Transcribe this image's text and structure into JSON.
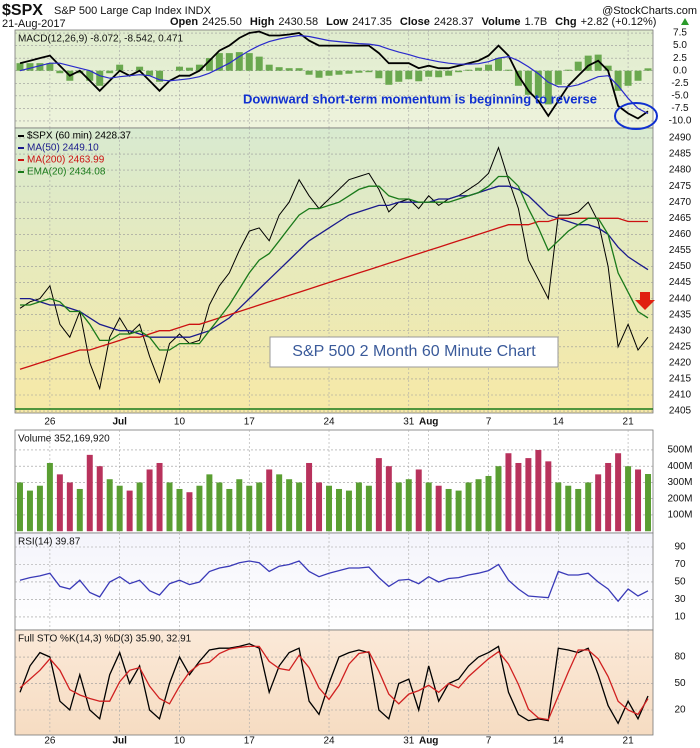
{
  "header": {
    "symbol": "$SPX",
    "name": "S&P 500 Large Cap Index INDX",
    "source": "@StockCharts.com",
    "date": "21-Aug-2017",
    "quote": [
      {
        "label": "Open",
        "value": "2425.50"
      },
      {
        "label": "High",
        "value": "2430.58"
      },
      {
        "label": "Low",
        "value": "2417.35"
      },
      {
        "label": "Close",
        "value": "2428.37"
      },
      {
        "label": "Volume",
        "value": "1.7B"
      },
      {
        "label": "Chg",
        "value": "+2.82 (+0.12%)"
      }
    ]
  },
  "chart_data": [
    {
      "type": "macd",
      "title": "MACD(12,26,9) -8.072, -8.542, 0.471",
      "annotation": "Downward short-term momentum is beginning to reverse",
      "ylim": [
        -11.4,
        8.1
      ],
      "yticks": [
        7.5,
        {
          "value": 5,
          "label": "5.0"
        },
        2.5,
        {
          "value": 0,
          "label": "0.0"
        },
        -2.5,
        {
          "value": -5,
          "label": "-5.0"
        },
        -7.5,
        {
          "value": -10,
          "label": "-10.0"
        }
      ],
      "grid": true,
      "series": [
        {
          "color": "#000000",
          "values": [
            1.5,
            2,
            2.5,
            3,
            1,
            -1,
            0,
            -2,
            -4,
            -2,
            0,
            -1,
            0,
            -2,
            -4,
            -2,
            -1,
            -1,
            0,
            2,
            4,
            5,
            6.5,
            7.5,
            7.8,
            7,
            7,
            7.2,
            7.5,
            6,
            5,
            5,
            5,
            5,
            5,
            5,
            3.5,
            1.5,
            1.5,
            1.5,
            0.5,
            1,
            0.5,
            0.5,
            1,
            1.5,
            2,
            3,
            5,
            3,
            -1,
            -4,
            -6,
            -9,
            -6,
            -3,
            -1,
            1,
            2,
            0,
            -7,
            -8.5,
            -9.5,
            -8.072
          ]
        },
        {
          "color": "#2a2acc",
          "values": [
            0,
            0.5,
            1,
            1.5,
            1.5,
            1,
            0.5,
            0,
            -1,
            -1.5,
            -1.2,
            -1,
            -0.8,
            -1,
            -1.8,
            -2,
            -1.8,
            -1.6,
            -1.2,
            -0.5,
            0.5,
            1.5,
            2.8,
            4,
            5,
            5.8,
            6.3,
            6.7,
            7,
            6.8,
            6.4,
            6,
            5.8,
            5.6,
            5.4,
            5.3,
            5,
            4.3,
            3.7,
            3.2,
            2.6,
            2.2,
            1.8,
            1.5,
            1.3,
            1.3,
            1.4,
            1.8,
            2.5,
            2.8,
            2,
            0.8,
            -0.6,
            -2.3,
            -3.2,
            -3.2,
            -2.8,
            -2,
            -1.2,
            -1,
            -3,
            -5.5,
            -7.5,
            -8.542
          ]
        }
      ],
      "histogram": {
        "color": "#6aa84f",
        "values": [
          1.5,
          1.5,
          1.5,
          1.5,
          -0.5,
          -2,
          -0.5,
          -2,
          -3,
          -0.5,
          1.2,
          0,
          0.8,
          -1,
          -2.2,
          0,
          0.8,
          0.6,
          1.2,
          2.5,
          3.5,
          3.5,
          3.7,
          3.5,
          2.8,
          1.2,
          0.7,
          0.5,
          0.5,
          -0.8,
          -1.4,
          -1,
          -0.8,
          -0.6,
          -0.4,
          -0.3,
          -1.5,
          -2.8,
          -2.2,
          -1.7,
          -2.1,
          -1.2,
          -1.3,
          -1,
          -0.3,
          0.2,
          0.6,
          1.2,
          2.5,
          0.2,
          -3,
          -4.8,
          -5.4,
          -6.7,
          -2.8,
          0.2,
          1.8,
          3,
          3.2,
          1,
          -4,
          -3,
          -2,
          0.471
        ]
      }
    },
    {
      "type": "line",
      "annotation": "S&P 500 2 Month 60 Minute Chart",
      "categories": [
        null,
        null,
        null,
        "26",
        null,
        null,
        null,
        null,
        null,
        null,
        "Jul",
        null,
        null,
        null,
        null,
        null,
        "10",
        null,
        null,
        null,
        null,
        null,
        null,
        "17",
        null,
        null,
        null,
        null,
        null,
        null,
        null,
        "24",
        null,
        null,
        null,
        null,
        null,
        null,
        null,
        "31",
        null,
        "Aug",
        null,
        null,
        null,
        null,
        null,
        "7",
        null,
        null,
        null,
        null,
        null,
        null,
        "14",
        null,
        null,
        null,
        null,
        null,
        null,
        "21",
        null,
        null
      ],
      "ylim": [
        2404.4,
        2493.1
      ],
      "yticks": [
        2405,
        2410,
        2415,
        2420,
        2425,
        2430,
        2435,
        2440,
        2445,
        2450,
        2455,
        2460,
        2465,
        2470,
        2475,
        2480,
        2485,
        2490
      ],
      "grid": true,
      "series": [
        {
          "name": "$SPX (60 min) 2428.37",
          "color": "#000000",
          "values": [
            2437,
            2439,
            2440,
            2444,
            2432,
            2428,
            2436,
            2420,
            2412,
            2428,
            2434,
            2429,
            2432,
            2422,
            2414,
            2426,
            2429,
            2426,
            2427,
            2438,
            2444,
            2448,
            2455,
            2461,
            2462,
            2458,
            2466,
            2470,
            2477,
            2472,
            2468,
            2471,
            2474,
            2477,
            2478,
            2479,
            2474,
            2467,
            2470,
            2471,
            2468,
            2472,
            2469,
            2471,
            2472,
            2474,
            2476,
            2479,
            2487,
            2477,
            2468,
            2452,
            2446,
            2440,
            2466,
            2466,
            2467,
            2470,
            2464,
            2450,
            2425,
            2432,
            2424,
            2428
          ]
        },
        {
          "name": "MA(50) 2449.10",
          "color": "#1a1a8c",
          "values": [
            2440,
            2440,
            2439,
            2438,
            2438,
            2437,
            2436,
            2434,
            2432,
            2431,
            2430,
            2430,
            2429,
            2428,
            2428,
            2428,
            2428,
            2428,
            2429,
            2430,
            2432,
            2434,
            2437,
            2440,
            2443,
            2446,
            2449,
            2452,
            2455,
            2458,
            2460,
            2462,
            2464,
            2466,
            2467,
            2468,
            2469,
            2469,
            2470,
            2470,
            2470,
            2470,
            2471,
            2471,
            2472,
            2472,
            2473,
            2474,
            2475,
            2475,
            2474,
            2472,
            2469,
            2466,
            2465,
            2464,
            2463,
            2463,
            2462,
            2460,
            2456,
            2453,
            2451,
            2449
          ]
        },
        {
          "name": "MA(200) 2463.99",
          "color": "#cc1111",
          "values": [
            2418,
            2419,
            2420,
            2421,
            2422,
            2423,
            2424,
            2424,
            2425,
            2426,
            2427,
            2428,
            2428,
            2429,
            2430,
            2430,
            2431,
            2432,
            2432,
            2433,
            2434,
            2435,
            2436,
            2437,
            2438,
            2439,
            2440,
            2441,
            2442,
            2443,
            2444,
            2445,
            2446,
            2447,
            2448,
            2449,
            2450,
            2451,
            2452,
            2453,
            2454,
            2455,
            2456,
            2457,
            2458,
            2459,
            2460,
            2461,
            2462,
            2463,
            2463,
            2463,
            2464,
            2464,
            2465,
            2465,
            2465,
            2465,
            2465,
            2465,
            2465,
            2464,
            2464,
            2464
          ]
        },
        {
          "name": "EMA(20) 2434.08",
          "color": "#1a7a1a",
          "values": [
            2438,
            2438,
            2439,
            2440,
            2439,
            2436,
            2436,
            2432,
            2427,
            2427,
            2429,
            2429,
            2430,
            2428,
            2424,
            2424,
            2426,
            2426,
            2426,
            2430,
            2434,
            2438,
            2443,
            2448,
            2452,
            2454,
            2458,
            2462,
            2466,
            2468,
            2468,
            2469,
            2470,
            2472,
            2474,
            2475,
            2475,
            2472,
            2471,
            2471,
            2470,
            2470,
            2470,
            2470,
            2471,
            2472,
            2473,
            2475,
            2478,
            2478,
            2475,
            2468,
            2462,
            2455,
            2458,
            2461,
            2463,
            2465,
            2465,
            2460,
            2448,
            2442,
            2436,
            2434
          ]
        }
      ]
    },
    {
      "type": "bar",
      "title": "Volume 352,169,920",
      "up_color": "#5a9e32",
      "down_color": "#b8325c",
      "ylim": [
        -11000000,
        623000000
      ],
      "yticks": [
        {
          "value": 100000000,
          "label": "100M"
        },
        {
          "value": 200000000,
          "label": "200M"
        },
        {
          "value": 300000000,
          "label": "300M"
        },
        {
          "value": 400000000,
          "label": "400M"
        },
        {
          "value": 500000000,
          "label": "500M"
        }
      ],
      "grid": true,
      "values": [
        300000000,
        250000000,
        280000000,
        420000000,
        350000000,
        300000000,
        260000000,
        470000000,
        400000000,
        320000000,
        280000000,
        250000000,
        300000000,
        380000000,
        420000000,
        300000000,
        260000000,
        240000000,
        280000000,
        350000000,
        300000000,
        260000000,
        320000000,
        280000000,
        300000000,
        380000000,
        350000000,
        320000000,
        300000000,
        420000000,
        300000000,
        280000000,
        260000000,
        250000000,
        300000000,
        280000000,
        450000000,
        400000000,
        300000000,
        320000000,
        380000000,
        300000000,
        280000000,
        260000000,
        250000000,
        300000000,
        320000000,
        340000000,
        400000000,
        480000000,
        420000000,
        450000000,
        500000000,
        430000000,
        300000000,
        280000000,
        260000000,
        300000000,
        350000000,
        420000000,
        480000000,
        400000000,
        380000000,
        352169920
      ]
    },
    {
      "type": "line",
      "title": "RSI(14) 39.87",
      "ylim": [
        -4.9,
        106
      ],
      "yticks": [
        10,
        30,
        50,
        70,
        90
      ],
      "grid": true,
      "series": [
        {
          "color": "#3a3ab8",
          "values": [
            52,
            55,
            57,
            60,
            45,
            42,
            52,
            38,
            33,
            50,
            56,
            48,
            52,
            40,
            35,
            48,
            52,
            47,
            50,
            62,
            66,
            68,
            72,
            74,
            72,
            62,
            68,
            70,
            74,
            62,
            56,
            60,
            63,
            66,
            66,
            67,
            55,
            45,
            52,
            53,
            48,
            56,
            50,
            54,
            55,
            58,
            60,
            63,
            70,
            52,
            42,
            34,
            33,
            32,
            62,
            58,
            58,
            60,
            50,
            42,
            28,
            42,
            34,
            39.87
          ]
        }
      ]
    },
    {
      "type": "line",
      "title": "Full STO %K(14,3) %D(3) 35.90, 32.91",
      "ylim": [
        -8.3,
        110.6
      ],
      "yticks": [
        20,
        50,
        80
      ],
      "grid": true,
      "series": [
        {
          "color": "#000000",
          "values": [
            40,
            70,
            85,
            80,
            30,
            20,
            60,
            20,
            10,
            60,
            85,
            50,
            70,
            20,
            10,
            50,
            80,
            60,
            75,
            88,
            90,
            90,
            92,
            95,
            90,
            40,
            70,
            85,
            90,
            30,
            15,
            50,
            80,
            85,
            88,
            85,
            20,
            10,
            50,
            55,
            20,
            70,
            30,
            50,
            55,
            70,
            80,
            85,
            92,
            40,
            15,
            8,
            10,
            8,
            90,
            88,
            85,
            90,
            60,
            25,
            5,
            30,
            10,
            35.9
          ]
        },
        {
          "color": "#d02020",
          "values": [
            45,
            55,
            65,
            78,
            65,
            43,
            37,
            33,
            30,
            30,
            52,
            65,
            68,
            47,
            33,
            27,
            47,
            63,
            72,
            74,
            84,
            89,
            91,
            92,
            92,
            75,
            67,
            65,
            82,
            68,
            45,
            32,
            48,
            72,
            84,
            86,
            64,
            38,
            27,
            38,
            42,
            48,
            40,
            50,
            45,
            58,
            68,
            78,
            86,
            72,
            49,
            21,
            11,
            9,
            36,
            63,
            88,
            88,
            78,
            58,
            30,
            20,
            15,
            32.91
          ]
        }
      ]
    }
  ]
}
